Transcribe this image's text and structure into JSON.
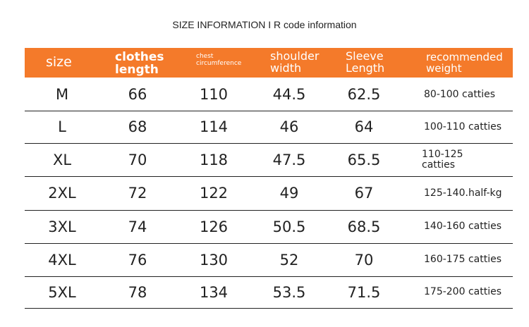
{
  "header": {
    "title": "SIZE INFORMATION I R code information"
  },
  "table": {
    "columns": [
      [
        "size"
      ],
      [
        "clothes",
        "length"
      ],
      [
        "chest",
        "circumference"
      ],
      [
        "shoulder",
        "width"
      ],
      [
        "Sleeve",
        "Length"
      ],
      [
        "recommended",
        "weight"
      ]
    ],
    "rows": [
      [
        "M",
        "66",
        "110",
        "44.5",
        "62.5",
        "80-100 catties"
      ],
      [
        "L",
        "68",
        "114",
        "46",
        "64",
        "100-110 catties"
      ],
      [
        "XL",
        "70",
        "118",
        "47.5",
        "65.5",
        "110-125 catties"
      ],
      [
        "2XL",
        "72",
        "122",
        "49",
        "67",
        "125-140.half-kg"
      ],
      [
        "3XL",
        "74",
        "126",
        "50.5",
        "68.5",
        "140-160 catties"
      ],
      [
        "4XL",
        "76",
        "130",
        "52",
        "70",
        "160-175 catties"
      ],
      [
        "5XL",
        "78",
        "134",
        "53.5",
        "71.5",
        "175-200 catties"
      ]
    ]
  }
}
